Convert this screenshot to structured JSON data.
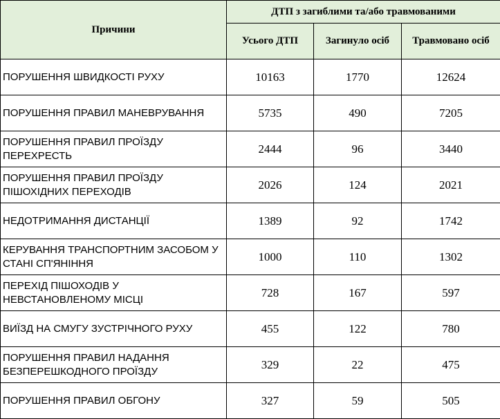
{
  "table": {
    "header": {
      "causes": "Причини",
      "group": "ДТП з загиблими та/або травмованими",
      "columns": [
        "Усього ДТП",
        "Загинуло осіб",
        "Травмовано осіб"
      ]
    },
    "rows": [
      [
        "ПОРУШЕННЯ ШВИДКОСТІ РУХУ",
        10163,
        1770,
        12624
      ],
      [
        "ПОРУШЕННЯ ПРАВИЛ МАНЕВРУВАННЯ",
        5735,
        490,
        7205
      ],
      [
        "ПОРУШЕННЯ ПРАВИЛ ПРОЇЗДУ ПЕРЕХРЕСТЬ",
        2444,
        96,
        3440
      ],
      [
        "ПОРУШЕННЯ ПРАВИЛ ПРОЇЗДУ ПІШОХІДНИХ ПЕРЕХОДІВ",
        2026,
        124,
        2021
      ],
      [
        "НЕДОТРИМАННЯ ДИСТАНЦІЇ",
        1389,
        92,
        1742
      ],
      [
        "КЕРУВАННЯ ТРАНСПОРТНИМ ЗАСОБОМ У СТАНІ СП'ЯНІННЯ",
        1000,
        110,
        1302
      ],
      [
        "ПЕРЕХІД ПІШОХОДІВ У НЕВСТАНОВЛЕНОМУ МІСЦІ",
        728,
        167,
        597
      ],
      [
        "ВИЇЗД НА СМУГУ ЗУСТРІЧНОГО РУХУ",
        455,
        122,
        780
      ],
      [
        "ПОРУШЕННЯ ПРАВИЛ НАДАННЯ БЕЗПЕРЕШКОДНОГО ПРОЇЗДУ",
        329,
        22,
        475
      ],
      [
        "ПОРУШЕННЯ ПРАВИЛ ОБГОНУ",
        327,
        59,
        505
      ]
    ]
  }
}
